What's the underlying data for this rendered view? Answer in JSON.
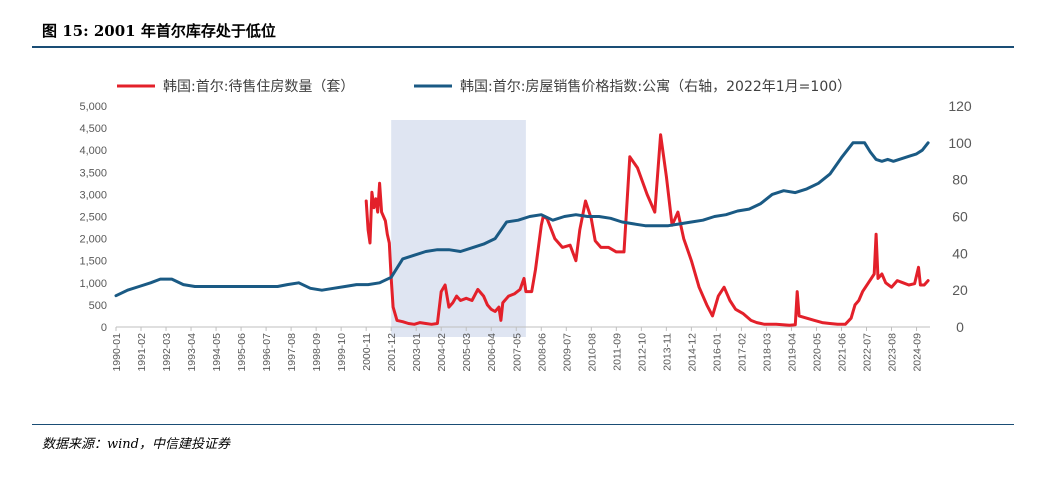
{
  "header": {
    "title": "图 15: 2001 年首尔库存处于低位"
  },
  "footer": {
    "source": "数据来源：wind，中信建投证券"
  },
  "chart_data": {
    "type": "line",
    "title": "",
    "legend_position": "top",
    "grid": false,
    "colors": {
      "left_series": "#e3202a",
      "right_series": "#1a5a84",
      "highlight": "#dfe5f2",
      "axis": "#bfbfbf"
    },
    "highlight_band": {
      "x_start": "2001-12",
      "x_end": "2007-10"
    },
    "x_tick_labels": [
      "1990-01",
      "1991-02",
      "1992-03",
      "1993-04",
      "1994-05",
      "1995-06",
      "1996-07",
      "1997-08",
      "1998-09",
      "1999-10",
      "2000-11",
      "2001-12",
      "2003-01",
      "2004-02",
      "2005-03",
      "2006-04",
      "2007-05",
      "2008-06",
      "2009-07",
      "2010-08",
      "2011-09",
      "2012-10",
      "2013-11",
      "2014-12",
      "2016-01",
      "2017-02",
      "2018-03",
      "2019-04",
      "2020-05",
      "2021-06",
      "2022-07",
      "2023-08",
      "2024-09"
    ],
    "y_left": {
      "range": [
        0,
        5000
      ],
      "ticks": [
        "0",
        "500",
        "1,000",
        "1,500",
        "2,000",
        "2,500",
        "3,000",
        "3,500",
        "4,000",
        "4,500",
        "5,000"
      ],
      "tick_values": [
        0,
        500,
        1000,
        1500,
        2000,
        2500,
        3000,
        3500,
        4000,
        4500,
        5000
      ]
    },
    "y_right": {
      "range": [
        0,
        120
      ],
      "ticks": [
        "0",
        "20",
        "40",
        "60",
        "80",
        "100",
        "120"
      ],
      "tick_values": [
        0,
        20,
        40,
        60,
        80,
        100,
        120
      ]
    },
    "series": [
      {
        "name": "韩国:首尔:待售住房数量（套）",
        "axis": "left",
        "points": [
          [
            "2000-11",
            2850
          ],
          [
            "2000-12",
            2200
          ],
          [
            "2001-01",
            1900
          ],
          [
            "2001-02",
            3050
          ],
          [
            "2001-03",
            2700
          ],
          [
            "2001-04",
            2900
          ],
          [
            "2001-05",
            2600
          ],
          [
            "2001-06",
            3250
          ],
          [
            "2001-07",
            2600
          ],
          [
            "2001-08",
            2500
          ],
          [
            "2001-09",
            2400
          ],
          [
            "2001-10",
            2100
          ],
          [
            "2001-11",
            1900
          ],
          [
            "2001-12",
            1100
          ],
          [
            "2002-01",
            450
          ],
          [
            "2002-03",
            150
          ],
          [
            "2002-06",
            120
          ],
          [
            "2002-09",
            80
          ],
          [
            "2002-12",
            60
          ],
          [
            "2003-03",
            100
          ],
          [
            "2003-06",
            80
          ],
          [
            "2003-09",
            60
          ],
          [
            "2003-12",
            80
          ],
          [
            "2004-02",
            800
          ],
          [
            "2004-04",
            950
          ],
          [
            "2004-06",
            450
          ],
          [
            "2004-08",
            550
          ],
          [
            "2004-10",
            700
          ],
          [
            "2004-12",
            600
          ],
          [
            "2005-03",
            650
          ],
          [
            "2005-06",
            600
          ],
          [
            "2005-09",
            850
          ],
          [
            "2005-12",
            700
          ],
          [
            "2006-02",
            500
          ],
          [
            "2006-04",
            400
          ],
          [
            "2006-06",
            350
          ],
          [
            "2006-08",
            450
          ],
          [
            "2006-09",
            150
          ],
          [
            "2006-10",
            550
          ],
          [
            "2007-01",
            700
          ],
          [
            "2007-04",
            750
          ],
          [
            "2007-07",
            850
          ],
          [
            "2007-09",
            1100
          ],
          [
            "2007-10",
            800
          ],
          [
            "2008-01",
            800
          ],
          [
            "2008-03",
            1300
          ],
          [
            "2008-06",
            2300
          ],
          [
            "2008-07",
            2500
          ],
          [
            "2008-09",
            2450
          ],
          [
            "2009-01",
            2000
          ],
          [
            "2009-05",
            1800
          ],
          [
            "2009-09",
            1850
          ],
          [
            "2009-12",
            1500
          ],
          [
            "2010-02",
            2200
          ],
          [
            "2010-05",
            2850
          ],
          [
            "2010-08",
            2450
          ],
          [
            "2010-10",
            1950
          ],
          [
            "2011-01",
            1800
          ],
          [
            "2011-05",
            1800
          ],
          [
            "2011-09",
            1700
          ],
          [
            "2012-01",
            1700
          ],
          [
            "2012-04",
            3850
          ],
          [
            "2012-08",
            3600
          ],
          [
            "2013-01",
            3000
          ],
          [
            "2013-05",
            2600
          ],
          [
            "2013-08",
            4350
          ],
          [
            "2013-11",
            3400
          ],
          [
            "2014-02",
            2300
          ],
          [
            "2014-05",
            2600
          ],
          [
            "2014-08",
            2000
          ],
          [
            "2014-12",
            1500
          ],
          [
            "2015-04",
            900
          ],
          [
            "2015-08",
            500
          ],
          [
            "2015-11",
            250
          ],
          [
            "2016-02",
            700
          ],
          [
            "2016-05",
            900
          ],
          [
            "2016-08",
            600
          ],
          [
            "2016-11",
            400
          ],
          [
            "2017-03",
            300
          ],
          [
            "2017-07",
            150
          ],
          [
            "2017-10",
            100
          ],
          [
            "2018-02",
            60
          ],
          [
            "2018-08",
            60
          ],
          [
            "2019-03",
            40
          ],
          [
            "2019-06",
            50
          ],
          [
            "2019-07",
            800
          ],
          [
            "2019-08",
            250
          ],
          [
            "2019-12",
            200
          ],
          [
            "2020-04",
            150
          ],
          [
            "2020-08",
            100
          ],
          [
            "2020-12",
            80
          ],
          [
            "2021-04",
            60
          ],
          [
            "2021-08",
            60
          ],
          [
            "2021-11",
            200
          ],
          [
            "2022-01",
            500
          ],
          [
            "2022-03",
            600
          ],
          [
            "2022-05",
            800
          ],
          [
            "2022-08",
            1000
          ],
          [
            "2022-11",
            1200
          ],
          [
            "2022-12",
            2100
          ],
          [
            "2023-01",
            1100
          ],
          [
            "2023-03",
            1200
          ],
          [
            "2023-05",
            1000
          ],
          [
            "2023-08",
            900
          ],
          [
            "2023-11",
            1050
          ],
          [
            "2024-02",
            1000
          ],
          [
            "2024-05",
            950
          ],
          [
            "2024-08",
            980
          ],
          [
            "2024-10",
            1350
          ],
          [
            "2024-11",
            950
          ],
          [
            "2025-01",
            950
          ],
          [
            "2025-03",
            1050
          ]
        ]
      },
      {
        "name": "韩国:首尔:房屋销售价格指数:公寓（右轴，2022年1月=100）",
        "axis": "right",
        "points": [
          [
            "1990-01",
            17
          ],
          [
            "1990-07",
            20
          ],
          [
            "1991-01",
            22
          ],
          [
            "1991-07",
            24
          ],
          [
            "1991-12",
            26
          ],
          [
            "1992-06",
            26
          ],
          [
            "1992-12",
            23
          ],
          [
            "1993-06",
            22
          ],
          [
            "1993-12",
            22
          ],
          [
            "1994-06",
            22
          ],
          [
            "1995-01",
            22
          ],
          [
            "1995-06",
            22
          ],
          [
            "1996-01",
            22
          ],
          [
            "1996-06",
            22
          ],
          [
            "1997-01",
            22
          ],
          [
            "1997-06",
            23
          ],
          [
            "1997-12",
            24
          ],
          [
            "1998-06",
            21
          ],
          [
            "1998-12",
            20
          ],
          [
            "1999-06",
            21
          ],
          [
            "1999-12",
            22
          ],
          [
            "2000-06",
            23
          ],
          [
            "2000-12",
            23
          ],
          [
            "2001-06",
            24
          ],
          [
            "2001-12",
            27
          ],
          [
            "2002-03",
            32
          ],
          [
            "2002-06",
            37
          ],
          [
            "2002-12",
            39
          ],
          [
            "2003-06",
            41
          ],
          [
            "2003-12",
            42
          ],
          [
            "2004-06",
            42
          ],
          [
            "2004-12",
            41
          ],
          [
            "2005-06",
            43
          ],
          [
            "2005-12",
            45
          ],
          [
            "2006-06",
            48
          ],
          [
            "2006-12",
            57
          ],
          [
            "2007-06",
            58
          ],
          [
            "2007-12",
            60
          ],
          [
            "2008-06",
            61
          ],
          [
            "2008-12",
            58
          ],
          [
            "2009-06",
            60
          ],
          [
            "2009-12",
            61
          ],
          [
            "2010-06",
            60
          ],
          [
            "2010-12",
            60
          ],
          [
            "2011-06",
            59
          ],
          [
            "2011-12",
            57
          ],
          [
            "2012-06",
            56
          ],
          [
            "2012-12",
            55
          ],
          [
            "2013-06",
            55
          ],
          [
            "2013-12",
            55
          ],
          [
            "2014-06",
            56
          ],
          [
            "2014-12",
            57
          ],
          [
            "2015-06",
            58
          ],
          [
            "2015-12",
            60
          ],
          [
            "2016-06",
            61
          ],
          [
            "2016-12",
            63
          ],
          [
            "2017-06",
            64
          ],
          [
            "2017-12",
            67
          ],
          [
            "2018-06",
            72
          ],
          [
            "2018-12",
            74
          ],
          [
            "2019-06",
            73
          ],
          [
            "2019-12",
            75
          ],
          [
            "2020-06",
            78
          ],
          [
            "2020-12",
            83
          ],
          [
            "2021-06",
            92
          ],
          [
            "2021-12",
            100
          ],
          [
            "2022-06",
            100
          ],
          [
            "2022-09",
            95
          ],
          [
            "2022-12",
            91
          ],
          [
            "2023-03",
            90
          ],
          [
            "2023-06",
            91
          ],
          [
            "2023-09",
            90
          ],
          [
            "2023-12",
            91
          ],
          [
            "2024-03",
            92
          ],
          [
            "2024-06",
            93
          ],
          [
            "2024-09",
            94
          ],
          [
            "2024-12",
            96
          ],
          [
            "2025-03",
            100
          ]
        ]
      }
    ]
  }
}
